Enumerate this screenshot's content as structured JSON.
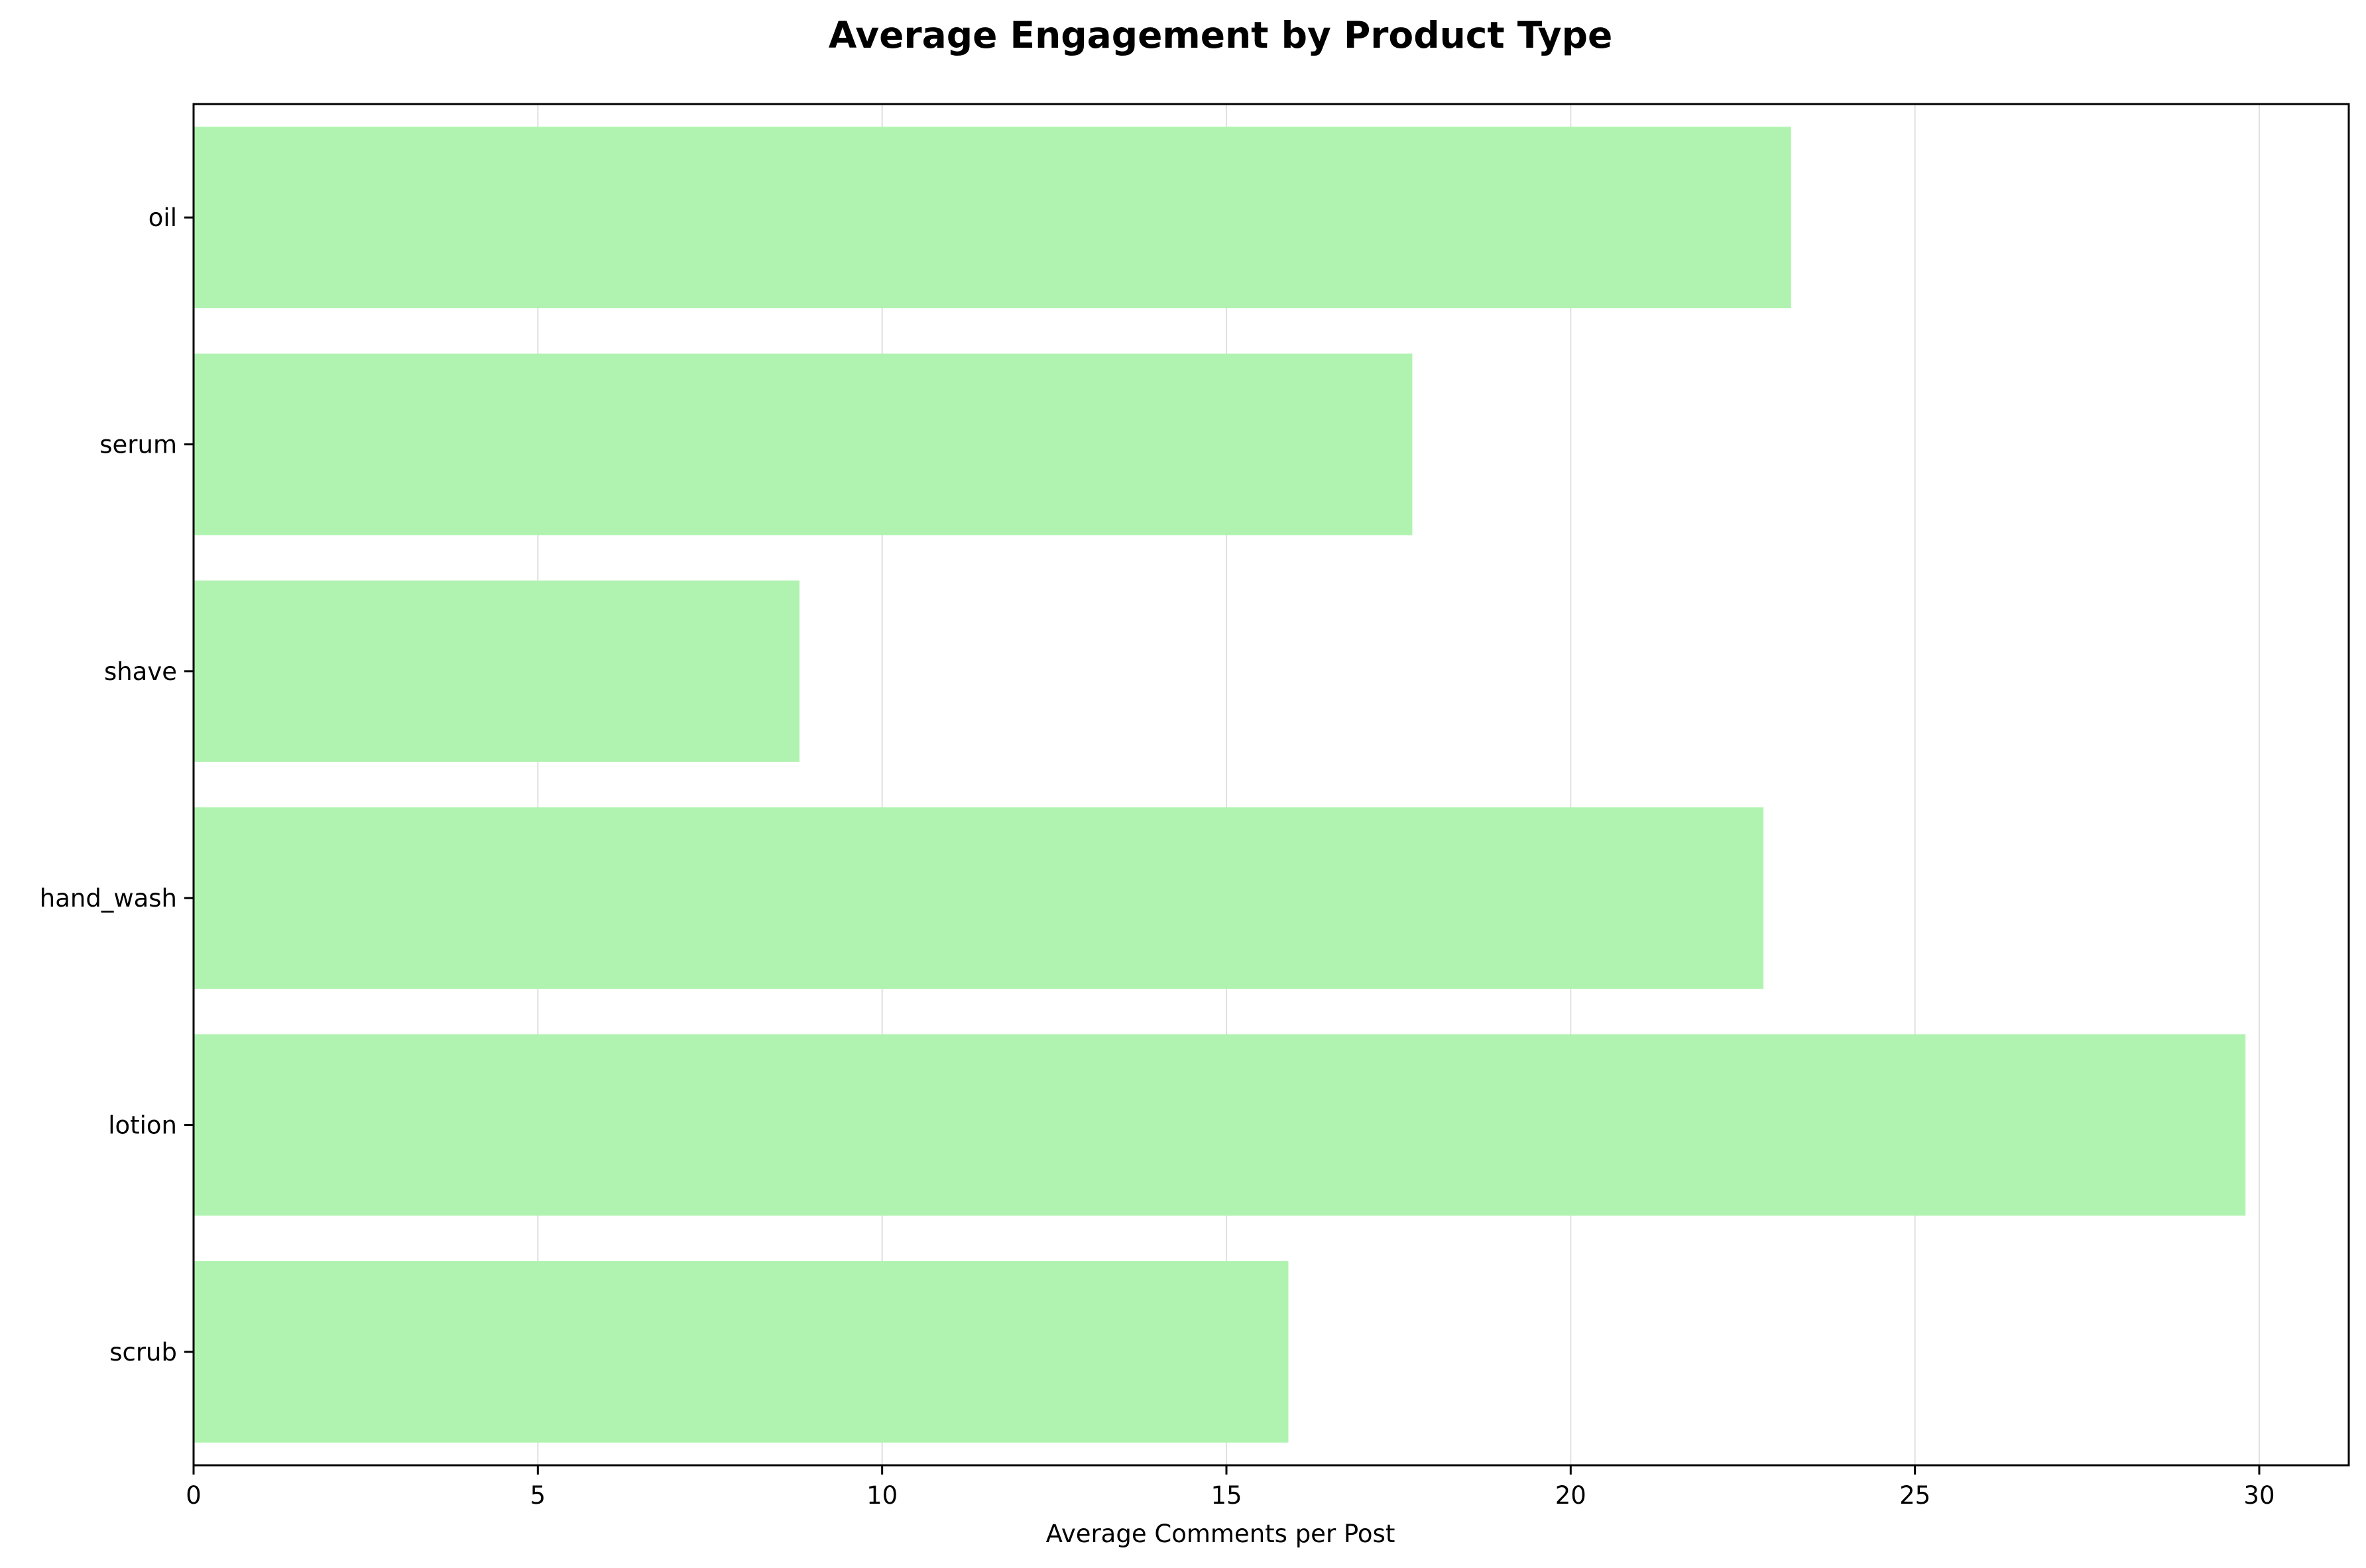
{
  "chart_data": {
    "type": "bar",
    "orientation": "horizontal",
    "title": "Average Engagement by Product Type",
    "xlabel": "Average Comments per Post",
    "ylabel": "",
    "categories": [
      "oil",
      "serum",
      "shave",
      "hand_wash",
      "lotion",
      "scrub"
    ],
    "values": [
      23.2,
      17.7,
      8.8,
      22.8,
      29.8,
      15.9
    ],
    "xlim": [
      0,
      31.3
    ],
    "xticks": [
      0,
      5,
      10,
      15,
      20,
      25,
      30
    ],
    "grid": "vertical",
    "legend": "none",
    "colors": {
      "bar": "#b0f3b0",
      "grid": "#e0e0e0",
      "axis": "#000000"
    }
  }
}
